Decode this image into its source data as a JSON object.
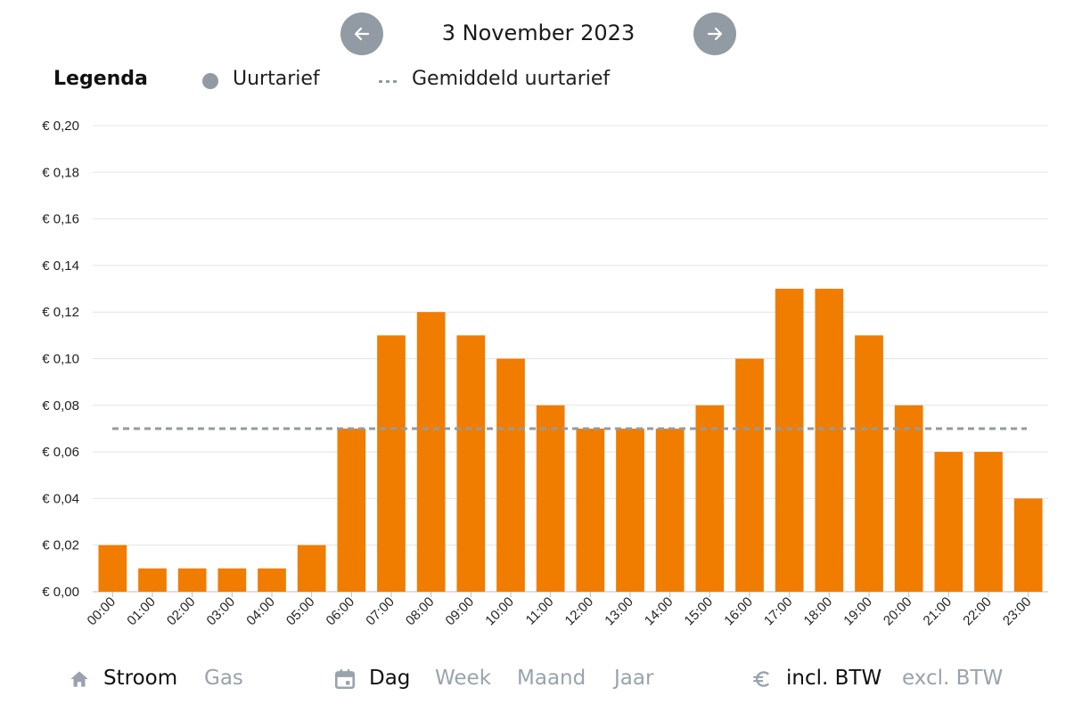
{
  "header": {
    "date": "3 November 2023"
  },
  "legend": {
    "title": "Legenda",
    "items": [
      {
        "label": "Uurtarief"
      },
      {
        "label": "Gemiddeld uurtarief"
      }
    ]
  },
  "colors": {
    "bar": "#f07c00",
    "average": "#929ba3",
    "grid": "#e4e4e4",
    "nav": "#929ba3",
    "inactive": "#98a3ad"
  },
  "chart_data": {
    "type": "bar",
    "categories": [
      "00:00",
      "01:00",
      "02:00",
      "03:00",
      "04:00",
      "05:00",
      "06:00",
      "07:00",
      "08:00",
      "09:00",
      "10:00",
      "11:00",
      "12:00",
      "13:00",
      "14:00",
      "15:00",
      "16:00",
      "17:00",
      "18:00",
      "19:00",
      "20:00",
      "21:00",
      "22:00",
      "23:00"
    ],
    "series": [
      {
        "name": "Uurtarief",
        "values": [
          0.02,
          0.01,
          0.01,
          0.01,
          0.01,
          0.02,
          0.07,
          0.11,
          0.12,
          0.11,
          0.1,
          0.08,
          0.07,
          0.07,
          0.07,
          0.08,
          0.1,
          0.13,
          0.13,
          0.11,
          0.08,
          0.06,
          0.06,
          0.04
        ]
      }
    ],
    "average": {
      "name": "Gemiddeld uurtarief",
      "value": 0.07
    },
    "ylim": [
      0,
      0.2
    ],
    "yticks": [
      "€ 0,00",
      "€ 0,02",
      "€ 0,04",
      "€ 0,06",
      "€ 0,08",
      "€ 0,10",
      "€ 0,12",
      "€ 0,14",
      "€ 0,16",
      "€ 0,18",
      "€ 0,20"
    ],
    "title": "",
    "xlabel": "",
    "ylabel": "",
    "grid": true,
    "legend_position": "top"
  },
  "footer": {
    "energy": {
      "icon": "home-icon",
      "active": "Stroom",
      "inactive": "Gas"
    },
    "period": {
      "icon": "calendar-icon",
      "active": "Dag",
      "options": [
        "Week",
        "Maand",
        "Jaar"
      ]
    },
    "vat": {
      "icon": "euro-icon",
      "active": "incl. BTW",
      "inactive": "excl. BTW"
    }
  }
}
